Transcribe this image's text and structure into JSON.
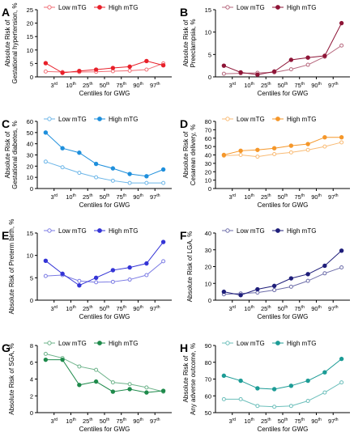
{
  "figure": {
    "xlabel": "Centiles for GWG",
    "legend_low": "Low mTG",
    "legend_high": "High mTG"
  },
  "chart_data": [
    {
      "panel": "A",
      "type": "line",
      "color": "#e8202a",
      "ylabel_lines": [
        "Absolute Risk of",
        "Gestational hypertension, %"
      ],
      "ylim": [
        0,
        25
      ],
      "yticks": [
        0,
        5,
        10,
        15,
        20,
        25
      ],
      "x": [
        1,
        2,
        3,
        4,
        5,
        6,
        7,
        8
      ],
      "xtick_positions": [
        1.5,
        2.5,
        3.5,
        4.5,
        5.5,
        6.5,
        7.5
      ],
      "xtick_labels": [
        "3",
        "10",
        "25",
        "50",
        "75",
        "90",
        "97"
      ],
      "xtick_suffix": [
        "rd",
        "th",
        "th",
        "th",
        "th",
        "th",
        "th"
      ],
      "series": [
        {
          "name": "Low mTG",
          "values": [
            2.0,
            1.8,
            1.8,
            1.9,
            2.1,
            2.3,
            2.7,
            5.0
          ]
        },
        {
          "name": "High mTG",
          "values": [
            5.1,
            1.5,
            2.2,
            2.7,
            3.3,
            3.8,
            5.9,
            4.3
          ]
        }
      ]
    },
    {
      "panel": "B",
      "type": "line",
      "color": "#8e1537",
      "ylabel_lines": [
        "Absolute Risk of",
        "Preeclampsia, %"
      ],
      "ylim": [
        0,
        15
      ],
      "yticks": [
        0,
        5,
        10,
        15
      ],
      "x": [
        1,
        2,
        3,
        4,
        5,
        6,
        7,
        8
      ],
      "xtick_positions": [
        1.5,
        2.5,
        3.5,
        4.5,
        5.5,
        6.5,
        7.5
      ],
      "xtick_labels": [
        "3",
        "10",
        "25",
        "50",
        "75",
        "90",
        "97"
      ],
      "xtick_suffix": [
        "rd",
        "th",
        "th",
        "th",
        "th",
        "th",
        "th"
      ],
      "series": [
        {
          "name": "Low mTG",
          "values": [
            0.7,
            0.8,
            0.9,
            1.0,
            1.7,
            2.7,
            4.5,
            7.0
          ]
        },
        {
          "name": "High mTG",
          "values": [
            2.5,
            1.0,
            0.5,
            1.2,
            3.8,
            4.3,
            4.7,
            12.0
          ]
        }
      ]
    },
    {
      "panel": "C",
      "type": "line",
      "color": "#1e8fdc",
      "ylabel_lines": [
        "Absolute Risk of",
        "Gestational diabetes, %"
      ],
      "ylim": [
        0,
        60
      ],
      "yticks": [
        0,
        10,
        20,
        30,
        40,
        50,
        60
      ],
      "x": [
        1,
        2,
        3,
        4,
        5,
        6,
        7,
        8
      ],
      "xtick_positions": [
        1.5,
        2.5,
        3.5,
        4.5,
        5.5,
        6.5,
        7.5
      ],
      "xtick_labels": [
        "3",
        "10",
        "25",
        "50",
        "75",
        "90",
        "97"
      ],
      "xtick_suffix": [
        "rd",
        "th",
        "th",
        "th",
        "th",
        "th",
        "th"
      ],
      "series": [
        {
          "name": "Low mTG",
          "values": [
            24,
            19,
            14,
            10,
            7,
            5,
            5,
            5
          ]
        },
        {
          "name": "High mTG",
          "values": [
            50,
            36,
            32,
            22,
            18,
            13,
            11,
            17
          ]
        }
      ]
    },
    {
      "panel": "D",
      "type": "line",
      "color": "#f5972a",
      "ylabel_lines": [
        "Absolute Risk of",
        "Cesarean delivery, %"
      ],
      "ylim": [
        0,
        80
      ],
      "yticks": [
        0,
        10,
        20,
        30,
        40,
        50,
        60,
        70,
        80
      ],
      "x": [
        1,
        2,
        3,
        4,
        5,
        6,
        7,
        8
      ],
      "xtick_positions": [
        1.5,
        2.5,
        3.5,
        4.5,
        5.5,
        6.5,
        7.5
      ],
      "xtick_labels": [
        "3",
        "10",
        "25",
        "50",
        "75",
        "90",
        "97"
      ],
      "xtick_suffix": [
        "rd",
        "th",
        "th",
        "th",
        "th",
        "th",
        "th"
      ],
      "series": [
        {
          "name": "Low mTG",
          "values": [
            39,
            40,
            38,
            41,
            43,
            46,
            50,
            55
          ]
        },
        {
          "name": "High mTG",
          "values": [
            40,
            45,
            46,
            48,
            51,
            53,
            61,
            61
          ]
        }
      ]
    },
    {
      "panel": "E",
      "type": "line",
      "color": "#3434d6",
      "ylabel_lines": [
        "Absolute Risk of Preterm birth, %"
      ],
      "ylim": [
        0,
        15
      ],
      "yticks": [
        0,
        5,
        10,
        15
      ],
      "x": [
        1,
        2,
        3,
        4,
        5,
        6,
        7,
        8
      ],
      "xtick_positions": [
        1.5,
        2.5,
        3.5,
        4.5,
        5.5,
        6.5,
        7.5
      ],
      "xtick_labels": [
        "3",
        "10",
        "25",
        "50",
        "75",
        "90",
        "97"
      ],
      "xtick_suffix": [
        "rd",
        "th",
        "th",
        "th",
        "th",
        "th",
        "th"
      ],
      "series": [
        {
          "name": "Low mTG",
          "values": [
            5.4,
            5.6,
            4.3,
            4.0,
            4.1,
            4.6,
            5.6,
            8.7
          ]
        },
        {
          "name": "High mTG",
          "values": [
            8.8,
            5.9,
            3.3,
            5.0,
            6.7,
            7.3,
            8.2,
            13.0
          ]
        }
      ]
    },
    {
      "panel": "F",
      "type": "line",
      "color": "#1f1e7a",
      "ylabel_lines": [
        "Absolute Risk of LGA, %"
      ],
      "ylim": [
        0,
        40
      ],
      "yticks": [
        0,
        10,
        20,
        30,
        40
      ],
      "x": [
        1,
        2,
        3,
        4,
        5,
        6,
        7,
        8
      ],
      "xtick_positions": [
        1.5,
        2.5,
        3.5,
        4.5,
        5.5,
        6.5,
        7.5
      ],
      "xtick_labels": [
        "3",
        "10",
        "25",
        "50",
        "75",
        "90",
        "97"
      ],
      "xtick_suffix": [
        "rd",
        "th",
        "th",
        "th",
        "th",
        "th",
        "th"
      ],
      "series": [
        {
          "name": "Low mTG",
          "values": [
            3.5,
            4.0,
            4.5,
            6.0,
            8.0,
            11.5,
            16.0,
            19.5
          ]
        },
        {
          "name": "High mTG",
          "values": [
            5.0,
            3.0,
            6.5,
            8.5,
            13.0,
            15.5,
            20.5,
            29.5
          ]
        }
      ]
    },
    {
      "panel": "G",
      "type": "line",
      "color": "#1e8a4b",
      "ylabel_lines": [
        "Absolute Risk of SGA, %"
      ],
      "ylim": [
        0,
        8
      ],
      "yticks": [
        0,
        2,
        4,
        6,
        8
      ],
      "x": [
        1,
        2,
        3,
        4,
        5,
        6,
        7,
        8
      ],
      "xtick_positions": [
        1.5,
        2.5,
        3.5,
        4.5,
        5.5,
        6.5,
        7.5
      ],
      "xtick_labels": [
        "3",
        "10",
        "25",
        "50",
        "75",
        "90",
        "97"
      ],
      "xtick_suffix": [
        "rd",
        "th",
        "th",
        "th",
        "th",
        "th",
        "th"
      ],
      "series": [
        {
          "name": "Low mTG",
          "values": [
            7.0,
            6.5,
            5.5,
            5.1,
            3.6,
            3.4,
            3.0,
            2.5
          ]
        },
        {
          "name": "High mTG",
          "values": [
            6.3,
            6.3,
            3.3,
            3.7,
            2.5,
            2.8,
            2.4,
            2.6
          ]
        }
      ]
    },
    {
      "panel": "H",
      "type": "line",
      "color": "#1d9c96",
      "ylabel_lines": [
        "Absolute Risk of",
        "Any adverse outcome, %"
      ],
      "ylim": [
        50,
        90
      ],
      "yticks": [
        50,
        60,
        70,
        80,
        90
      ],
      "x": [
        1,
        2,
        3,
        4,
        5,
        6,
        7,
        8
      ],
      "xtick_positions": [
        1.5,
        2.5,
        3.5,
        4.5,
        5.5,
        6.5,
        7.5
      ],
      "xtick_labels": [
        "3",
        "10",
        "25",
        "50",
        "75",
        "90",
        "97"
      ],
      "xtick_suffix": [
        "rd",
        "th",
        "th",
        "th",
        "th",
        "th",
        "th"
      ],
      "series": [
        {
          "name": "Low mTG",
          "values": [
            58,
            58,
            54,
            53.5,
            54,
            57,
            62,
            68
          ]
        },
        {
          "name": "High mTG",
          "values": [
            72,
            69,
            64.5,
            64,
            66,
            69,
            74,
            82
          ]
        }
      ]
    }
  ]
}
